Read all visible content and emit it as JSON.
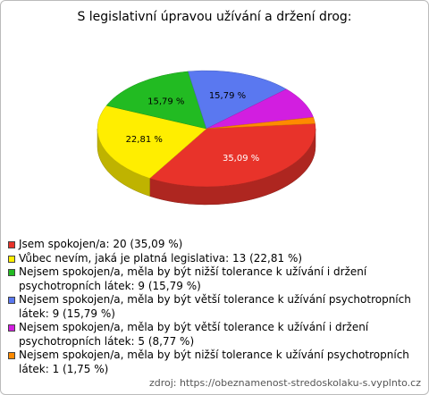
{
  "chart_data": {
    "type": "pie3d",
    "title": "S legislativní úpravou užívání a držení drog:",
    "categories": [
      "Jsem spokojen/a: 20 (35,09 %)",
      "Vůbec nevím, jaká je platná legislativa: 13 (22,81 %)",
      "Nejsem spokojen/a, měla by být nižší tolerance k užívání i držení psychotropních látek: 9 (15,79 %)",
      "Nejsem spokojen/a, měla by být větší tolerance k užívání psychotropních látek: 9 (15,79 %)",
      "Nejsem spokojen/a, měla by být větší tolerance k užívání i držení psychotropních látek: 5 (8,77 %)",
      "Nejsem spokojen/a, měla by být nižší tolerance k užívání psychotropních látek: 1 (1,75 %)"
    ],
    "values": [
      35.09,
      22.81,
      15.79,
      15.79,
      8.77,
      1.75
    ],
    "value_labels": [
      "35,09 %",
      "22,81 %",
      "15,79 %",
      "15,79 %",
      null,
      null
    ],
    "colors": [
      "#e8332a",
      "#ffee00",
      "#22bb22",
      "#5a78f0",
      "#d21ee0",
      "#ff8a00"
    ],
    "source": "zdroj: https://obeznamenost-stredoskolaku-s.vyplnto.cz"
  }
}
